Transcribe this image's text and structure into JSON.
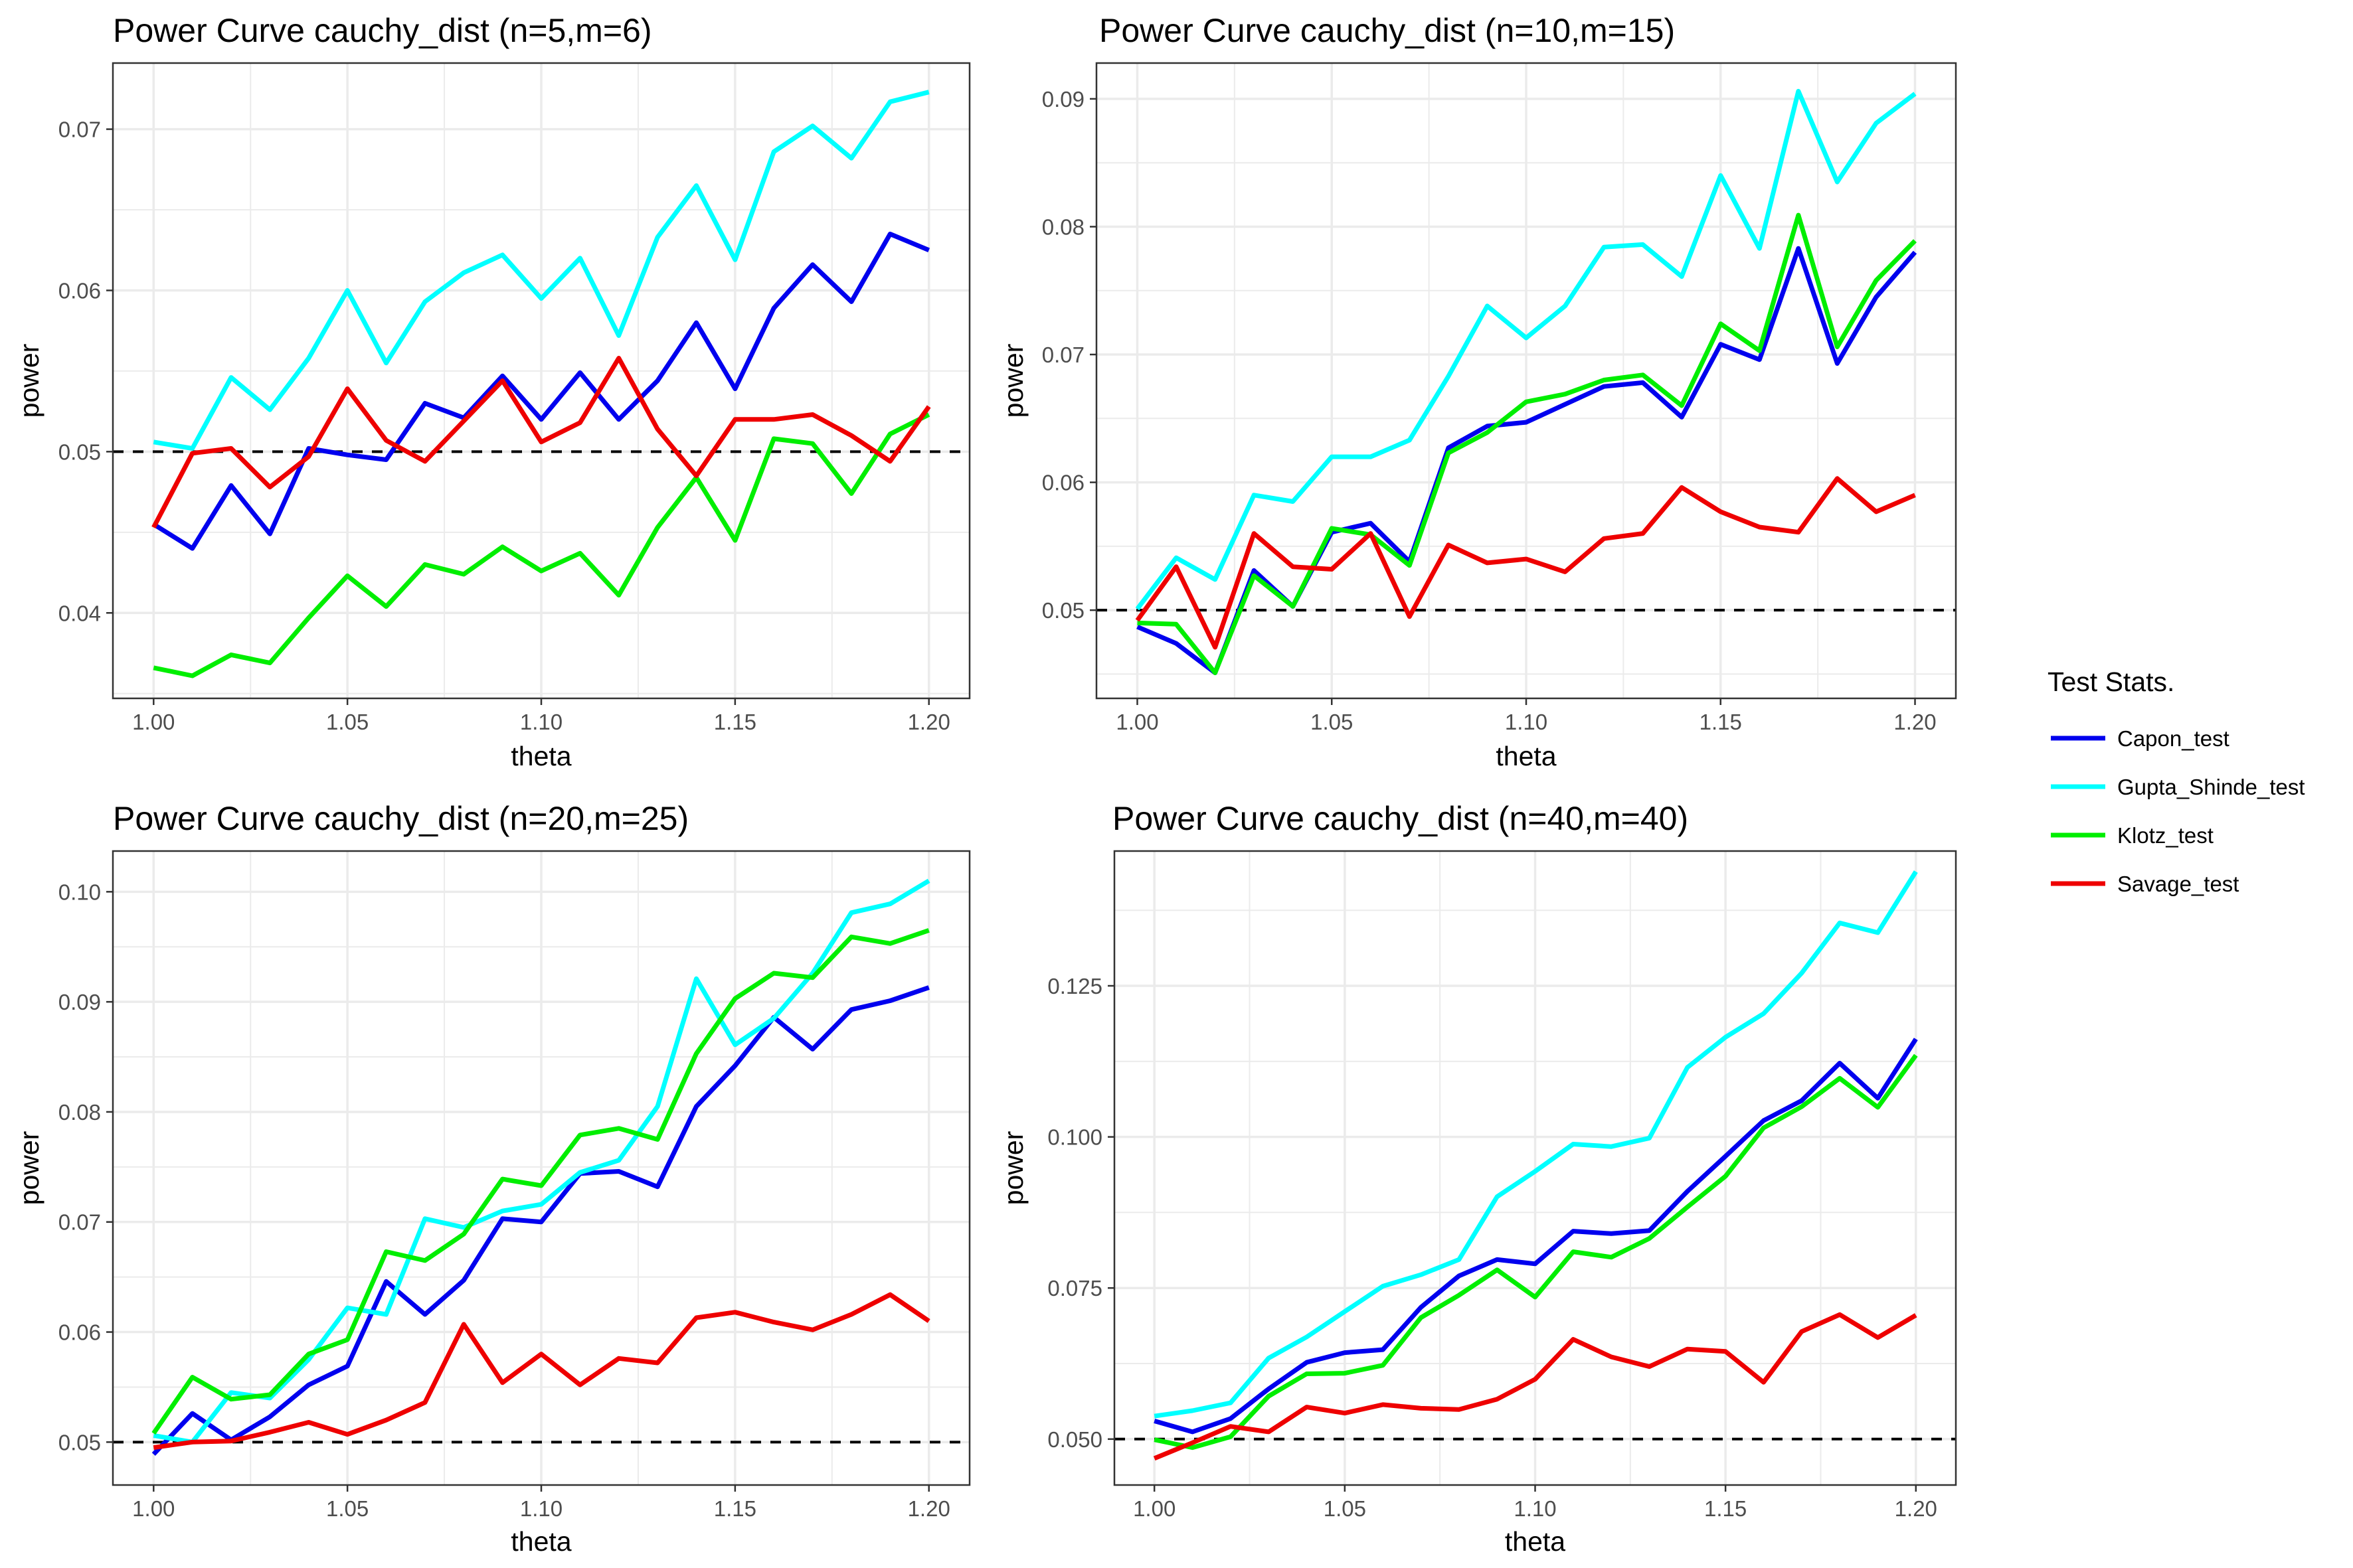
{
  "legend": {
    "title": "Test Stats.",
    "items": [
      {
        "name": "Capon_test",
        "color": "#0000EE"
      },
      {
        "name": "Gupta_Shinde_test",
        "color": "#00FFFF"
      },
      {
        "name": "Klotz_test",
        "color": "#00EE00"
      },
      {
        "name": "Savage_test",
        "color": "#EE0000"
      }
    ]
  },
  "chart_data": [
    {
      "type": "line",
      "title": "Power Curve cauchy_dist (n=5,m=6)",
      "xlabel": "theta",
      "ylabel": "power",
      "x": [
        1.0,
        1.01,
        1.02,
        1.03,
        1.04,
        1.05,
        1.06,
        1.07,
        1.08,
        1.09,
        1.1,
        1.11,
        1.12,
        1.13,
        1.14,
        1.15,
        1.16,
        1.17,
        1.18,
        1.19,
        1.2
      ],
      "xlim": [
        0.9895,
        1.2105
      ],
      "ylim": [
        0.0347,
        0.0741
      ],
      "xticks": [
        1.0,
        1.05,
        1.1,
        1.15,
        1.2
      ],
      "xtick_labels": [
        "1.00",
        "1.05",
        "1.10",
        "1.15",
        "1.20"
      ],
      "yticks": [
        0.04,
        0.05,
        0.06,
        0.07
      ],
      "ytick_labels": [
        "0.04",
        "0.05",
        "0.06",
        "0.07"
      ],
      "hline": 0.05,
      "series": [
        {
          "name": "Capon_test",
          "values": [
            0.0455,
            0.044,
            0.0479,
            0.0449,
            0.0502,
            0.0498,
            0.0495,
            0.053,
            0.0521,
            0.0547,
            0.052,
            0.0549,
            0.052,
            0.0544,
            0.058,
            0.0539,
            0.0589,
            0.0616,
            0.0593,
            0.0635,
            0.0625
          ]
        },
        {
          "name": "Gupta_Shinde_test",
          "values": [
            0.0506,
            0.0502,
            0.0546,
            0.0526,
            0.0558,
            0.06,
            0.0555,
            0.0593,
            0.0611,
            0.0622,
            0.0595,
            0.062,
            0.0572,
            0.0633,
            0.0665,
            0.0619,
            0.0686,
            0.0702,
            0.0682,
            0.0717,
            0.0723
          ]
        },
        {
          "name": "Klotz_test",
          "values": [
            0.0366,
            0.0361,
            0.0374,
            0.0369,
            0.0397,
            0.0423,
            0.0404,
            0.043,
            0.0424,
            0.0441,
            0.0426,
            0.0437,
            0.0411,
            0.0453,
            0.0484,
            0.0445,
            0.0508,
            0.0505,
            0.0474,
            0.0511,
            0.0523
          ]
        },
        {
          "name": "Savage_test",
          "values": [
            0.0453,
            0.0499,
            0.0502,
            0.0478,
            0.0497,
            0.0539,
            0.0507,
            0.0494,
            0.0519,
            0.0544,
            0.0506,
            0.0518,
            0.0558,
            0.0514,
            0.0485,
            0.052,
            0.052,
            0.0523,
            0.051,
            0.0494,
            0.0528
          ]
        }
      ]
    },
    {
      "type": "line",
      "title": "Power Curve cauchy_dist (n=10,m=15)",
      "xlabel": "theta",
      "ylabel": "power",
      "x": [
        1.0,
        1.01,
        1.02,
        1.03,
        1.04,
        1.05,
        1.06,
        1.07,
        1.08,
        1.09,
        1.1,
        1.11,
        1.12,
        1.13,
        1.14,
        1.15,
        1.16,
        1.17,
        1.18,
        1.19,
        1.2
      ],
      "xlim": [
        0.9895,
        1.2105
      ],
      "ylim": [
        0.0431,
        0.0928
      ],
      "xticks": [
        1.0,
        1.05,
        1.1,
        1.15,
        1.2
      ],
      "xtick_labels": [
        "1.00",
        "1.05",
        "1.10",
        "1.15",
        "1.20"
      ],
      "yticks": [
        0.05,
        0.06,
        0.07,
        0.08,
        0.09
      ],
      "ytick_labels": [
        "0.05",
        "0.06",
        "0.07",
        "0.08",
        "0.09"
      ],
      "hline": 0.05,
      "series": [
        {
          "name": "Capon_test",
          "values": [
            0.0487,
            0.0474,
            0.0451,
            0.0531,
            0.0503,
            0.0561,
            0.0568,
            0.0538,
            0.0627,
            0.0644,
            0.0647,
            0.0661,
            0.0675,
            0.0678,
            0.0651,
            0.0708,
            0.0696,
            0.0783,
            0.0693,
            0.0745,
            0.078
          ]
        },
        {
          "name": "Gupta_Shinde_test",
          "values": [
            0.0501,
            0.0541,
            0.0524,
            0.059,
            0.0585,
            0.062,
            0.062,
            0.0633,
            0.0683,
            0.0738,
            0.0713,
            0.0738,
            0.0784,
            0.0786,
            0.0761,
            0.084,
            0.0783,
            0.0906,
            0.0835,
            0.0881,
            0.0904
          ]
        },
        {
          "name": "Klotz_test",
          "values": [
            0.049,
            0.0489,
            0.0451,
            0.0527,
            0.0503,
            0.0564,
            0.0559,
            0.0535,
            0.0623,
            0.0639,
            0.0663,
            0.0669,
            0.068,
            0.0684,
            0.066,
            0.0724,
            0.0703,
            0.0809,
            0.0706,
            0.0758,
            0.0789
          ]
        },
        {
          "name": "Savage_test",
          "values": [
            0.0492,
            0.0534,
            0.0471,
            0.056,
            0.0534,
            0.0532,
            0.056,
            0.0495,
            0.0551,
            0.0537,
            0.054,
            0.053,
            0.0556,
            0.056,
            0.0596,
            0.0577,
            0.0565,
            0.0561,
            0.0603,
            0.0577,
            0.059
          ]
        }
      ]
    },
    {
      "type": "line",
      "title": "Power Curve cauchy_dist (n=20,m=25)",
      "xlabel": "theta",
      "ylabel": "power",
      "x": [
        1.0,
        1.01,
        1.02,
        1.03,
        1.04,
        1.05,
        1.06,
        1.07,
        1.08,
        1.09,
        1.1,
        1.11,
        1.12,
        1.13,
        1.14,
        1.15,
        1.16,
        1.17,
        1.18,
        1.19,
        1.2
      ],
      "xlim": [
        0.9895,
        1.2105
      ],
      "ylim": [
        0.0461,
        0.1037
      ],
      "xticks": [
        1.0,
        1.05,
        1.1,
        1.15,
        1.2
      ],
      "xtick_labels": [
        "1.00",
        "1.05",
        "1.10",
        "1.15",
        "1.20"
      ],
      "yticks": [
        0.05,
        0.06,
        0.07,
        0.08,
        0.09,
        0.1
      ],
      "ytick_labels": [
        "0.05",
        "0.06",
        "0.07",
        "0.08",
        "0.09",
        "0.10"
      ],
      "hline": 0.05,
      "series": [
        {
          "name": "Capon_test",
          "values": [
            0.0489,
            0.0526,
            0.0502,
            0.0523,
            0.0552,
            0.0569,
            0.0646,
            0.0616,
            0.0647,
            0.0703,
            0.07,
            0.0744,
            0.0746,
            0.0732,
            0.0805,
            0.0842,
            0.0886,
            0.0857,
            0.0893,
            0.0901,
            0.0913
          ]
        },
        {
          "name": "Gupta_Shinde_test",
          "values": [
            0.0506,
            0.05,
            0.0545,
            0.054,
            0.0575,
            0.0622,
            0.0616,
            0.0703,
            0.0695,
            0.071,
            0.0716,
            0.0745,
            0.0756,
            0.0805,
            0.0921,
            0.0861,
            0.0885,
            0.0926,
            0.0981,
            0.0989,
            0.101
          ]
        },
        {
          "name": "Klotz_test",
          "values": [
            0.0508,
            0.0559,
            0.0539,
            0.0543,
            0.058,
            0.0593,
            0.0673,
            0.0665,
            0.0689,
            0.0739,
            0.0733,
            0.0779,
            0.0785,
            0.0775,
            0.0853,
            0.0903,
            0.0926,
            0.0922,
            0.0959,
            0.0953,
            0.0965
          ]
        },
        {
          "name": "Savage_test",
          "values": [
            0.0495,
            0.05,
            0.0501,
            0.0509,
            0.0518,
            0.0507,
            0.052,
            0.0536,
            0.0607,
            0.0554,
            0.058,
            0.0552,
            0.0576,
            0.0572,
            0.0613,
            0.0618,
            0.0609,
            0.0602,
            0.0616,
            0.0634,
            0.061
          ]
        }
      ]
    },
    {
      "type": "line",
      "title": "Power Curve cauchy_dist (n=40,m=40)",
      "xlabel": "theta",
      "ylabel": "power",
      "x": [
        1.0,
        1.01,
        1.02,
        1.03,
        1.04,
        1.05,
        1.06,
        1.07,
        1.08,
        1.09,
        1.1,
        1.11,
        1.12,
        1.13,
        1.14,
        1.15,
        1.16,
        1.17,
        1.18,
        1.19,
        1.2
      ],
      "xlim": [
        0.9895,
        1.2105
      ],
      "ylim": [
        0.0424,
        0.1473
      ],
      "xticks": [
        1.0,
        1.05,
        1.1,
        1.15,
        1.2
      ],
      "xtick_labels": [
        "1.00",
        "1.05",
        "1.10",
        "1.15",
        "1.20"
      ],
      "yticks": [
        0.05,
        0.075,
        0.1,
        0.125
      ],
      "ytick_labels": [
        "0.050",
        "0.075",
        "0.100",
        "0.125"
      ],
      "hline": 0.05,
      "series": [
        {
          "name": "Capon_test",
          "values": [
            0.053,
            0.0512,
            0.0534,
            0.0583,
            0.0627,
            0.0643,
            0.0648,
            0.0718,
            0.077,
            0.0797,
            0.079,
            0.0844,
            0.084,
            0.0845,
            0.091,
            0.0968,
            0.1027,
            0.106,
            0.1122,
            0.1064,
            0.1162
          ]
        },
        {
          "name": "Gupta_Shinde_test",
          "values": [
            0.0538,
            0.0547,
            0.056,
            0.0634,
            0.0669,
            0.0711,
            0.0753,
            0.0772,
            0.0797,
            0.0901,
            0.0943,
            0.0988,
            0.0984,
            0.0998,
            0.1115,
            0.1165,
            0.1204,
            0.1271,
            0.1354,
            0.1338,
            0.1439
          ]
        },
        {
          "name": "Klotz_test",
          "values": [
            0.0499,
            0.0486,
            0.0504,
            0.0571,
            0.0608,
            0.0609,
            0.0622,
            0.0701,
            0.0738,
            0.078,
            0.0735,
            0.081,
            0.0801,
            0.0832,
            0.0884,
            0.0935,
            0.1015,
            0.105,
            0.1097,
            0.1049,
            0.1135
          ]
        },
        {
          "name": "Savage_test",
          "values": [
            0.0468,
            0.0494,
            0.0521,
            0.0512,
            0.0553,
            0.0543,
            0.0557,
            0.0551,
            0.0549,
            0.0566,
            0.0599,
            0.0665,
            0.0636,
            0.062,
            0.0649,
            0.0645,
            0.0594,
            0.0678,
            0.0706,
            0.0668,
            0.0705
          ]
        }
      ]
    }
  ]
}
